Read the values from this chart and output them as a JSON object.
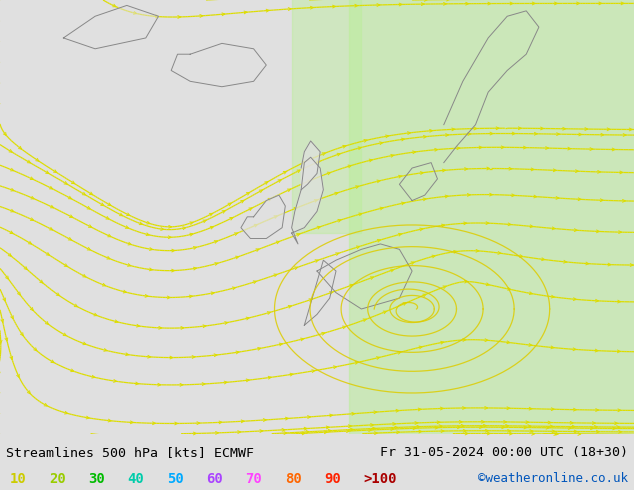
{
  "title_left": "Streamlines 500 hPa [kts] ECMWF",
  "title_right": "Fr 31-05-2024 00:00 UTC (18+30)",
  "credit": "©weatheronline.co.uk",
  "legend_values": [
    "10",
    "20",
    "30",
    "40",
    "50",
    "60",
    "70",
    "80",
    "90",
    ">100"
  ],
  "legend_colors": [
    "#cccc00",
    "#99cc00",
    "#00bb00",
    "#00ccaa",
    "#00aaff",
    "#aa44ff",
    "#ff44ff",
    "#ff6600",
    "#ff2200",
    "#aa0000"
  ],
  "bg_color": "#e0e0e0",
  "map_bg": "#e0e0e0",
  "green_zone_color": "#bbee99",
  "coastline_color": "#888888",
  "title_color": "#000000",
  "title_fontsize": 10,
  "credit_color": "#0055bb",
  "figsize": [
    6.34,
    4.9
  ],
  "dpi": 100,
  "stream_colors": {
    "10": "#dddd00",
    "20": "#aadd00",
    "30": "#55cc00",
    "40": "#00cc88",
    "50": "#00bbdd",
    "60": "#0088ff",
    "70": "#6600ff",
    "80": "#ff8800",
    "90": "#ff2200",
    "100": "#aa0000"
  }
}
